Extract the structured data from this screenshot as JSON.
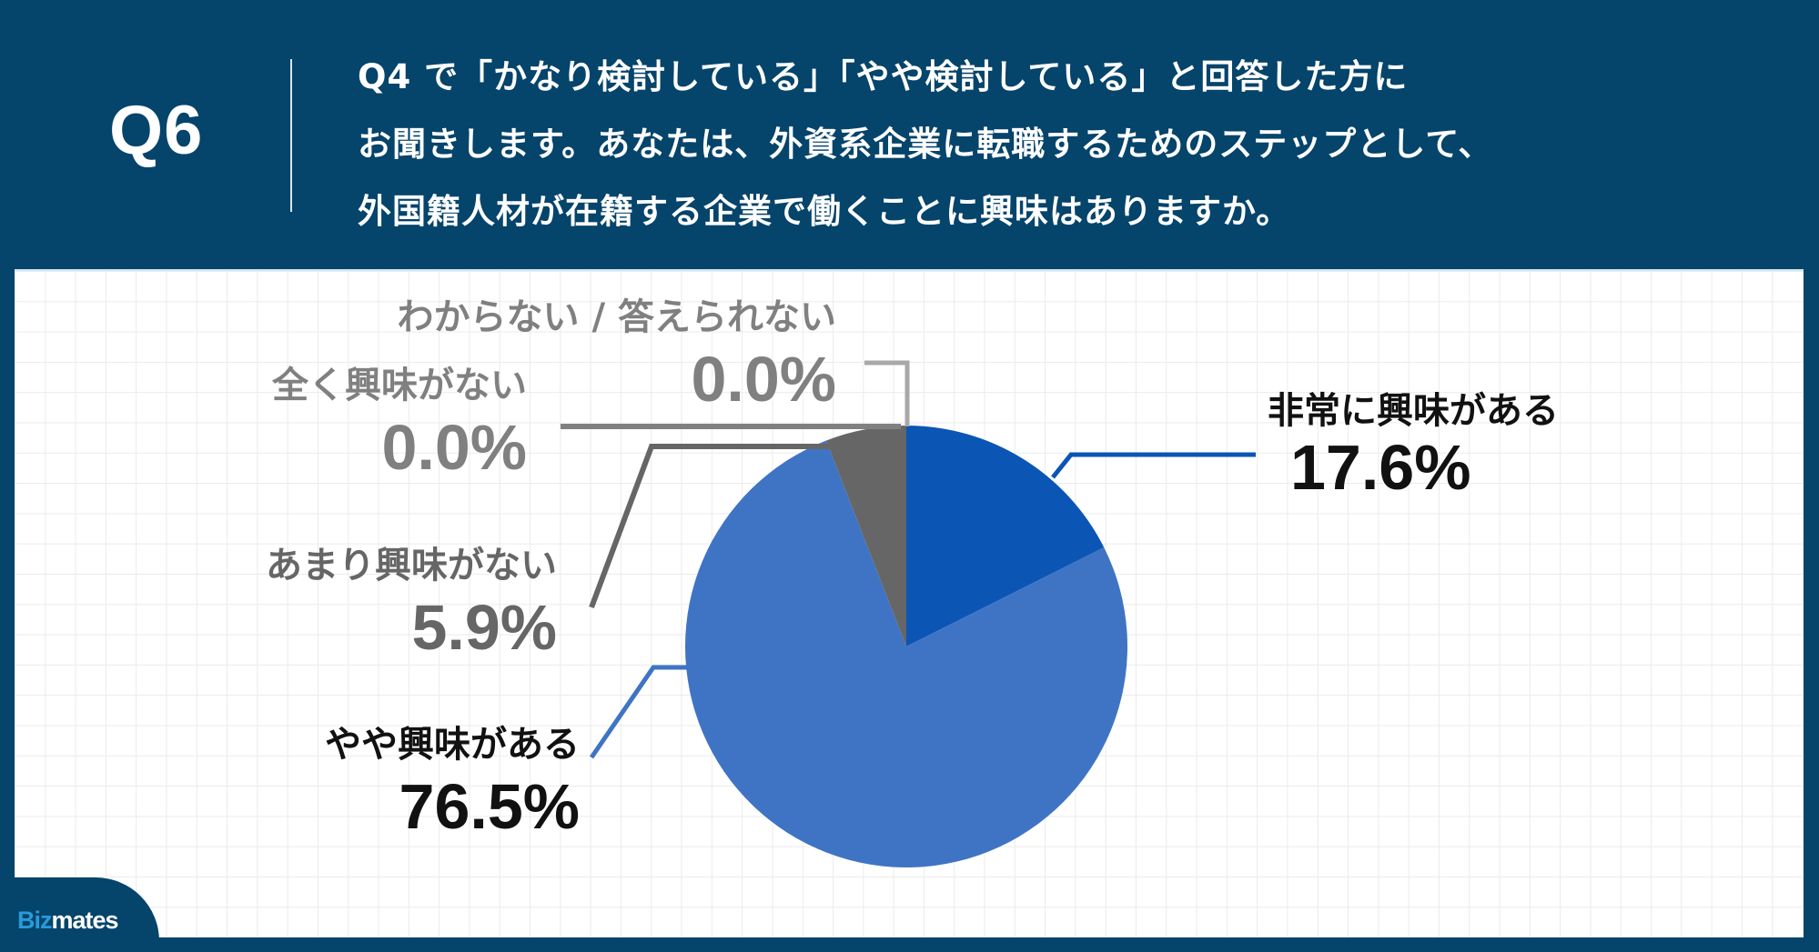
{
  "header": {
    "question_number": "Q6",
    "question_lines": [
      "Q4 で「かなり検討している」「やや検討している」と回答した方に",
      "お聞きします。あなたは、外資系企業に転職するためのステップとして、",
      "外国籍人材が在籍する企業で働くことに興味はありますか。"
    ]
  },
  "labels": {
    "very_interested": {
      "name": "非常に興味がある",
      "value": "17.6%"
    },
    "somewhat_interested": {
      "name": "やや興味がある",
      "value": "76.5%"
    },
    "not_very_interested": {
      "name": "あまり興味がない",
      "value": "5.9%"
    },
    "not_interested_at_all": {
      "name": "全く興味がない",
      "value": "0.0%"
    },
    "dont_know": {
      "name": "わからない / 答えられない",
      "value": "0.0%"
    }
  },
  "logo": {
    "biz": "Biz",
    "mates": "mates"
  },
  "colors": {
    "header_bg": "#05446b",
    "very_interested": "#0b55b5",
    "somewhat_interested": "#3f74c5",
    "not_very_interested": "#666666",
    "zero_label_gray": "#808080",
    "dont_know_line": "#a8a8a8"
  },
  "chart_data": {
    "type": "pie",
    "title": "Q6 外国籍人材が在籍する企業で働くことに興味はありますか",
    "categories": [
      "非常に興味がある",
      "やや興味がある",
      "あまり興味がない",
      "全く興味がない",
      "わからない / 答えられない"
    ],
    "values": [
      17.6,
      76.5,
      5.9,
      0.0,
      0.0
    ],
    "unit": "%",
    "start_angle": "12 o'clock, clockwise",
    "colors": [
      "#0b55b5",
      "#3f74c5",
      "#666666",
      "#666666",
      "#a8a8a8"
    ],
    "legend": "none (leader-line data labels)"
  }
}
